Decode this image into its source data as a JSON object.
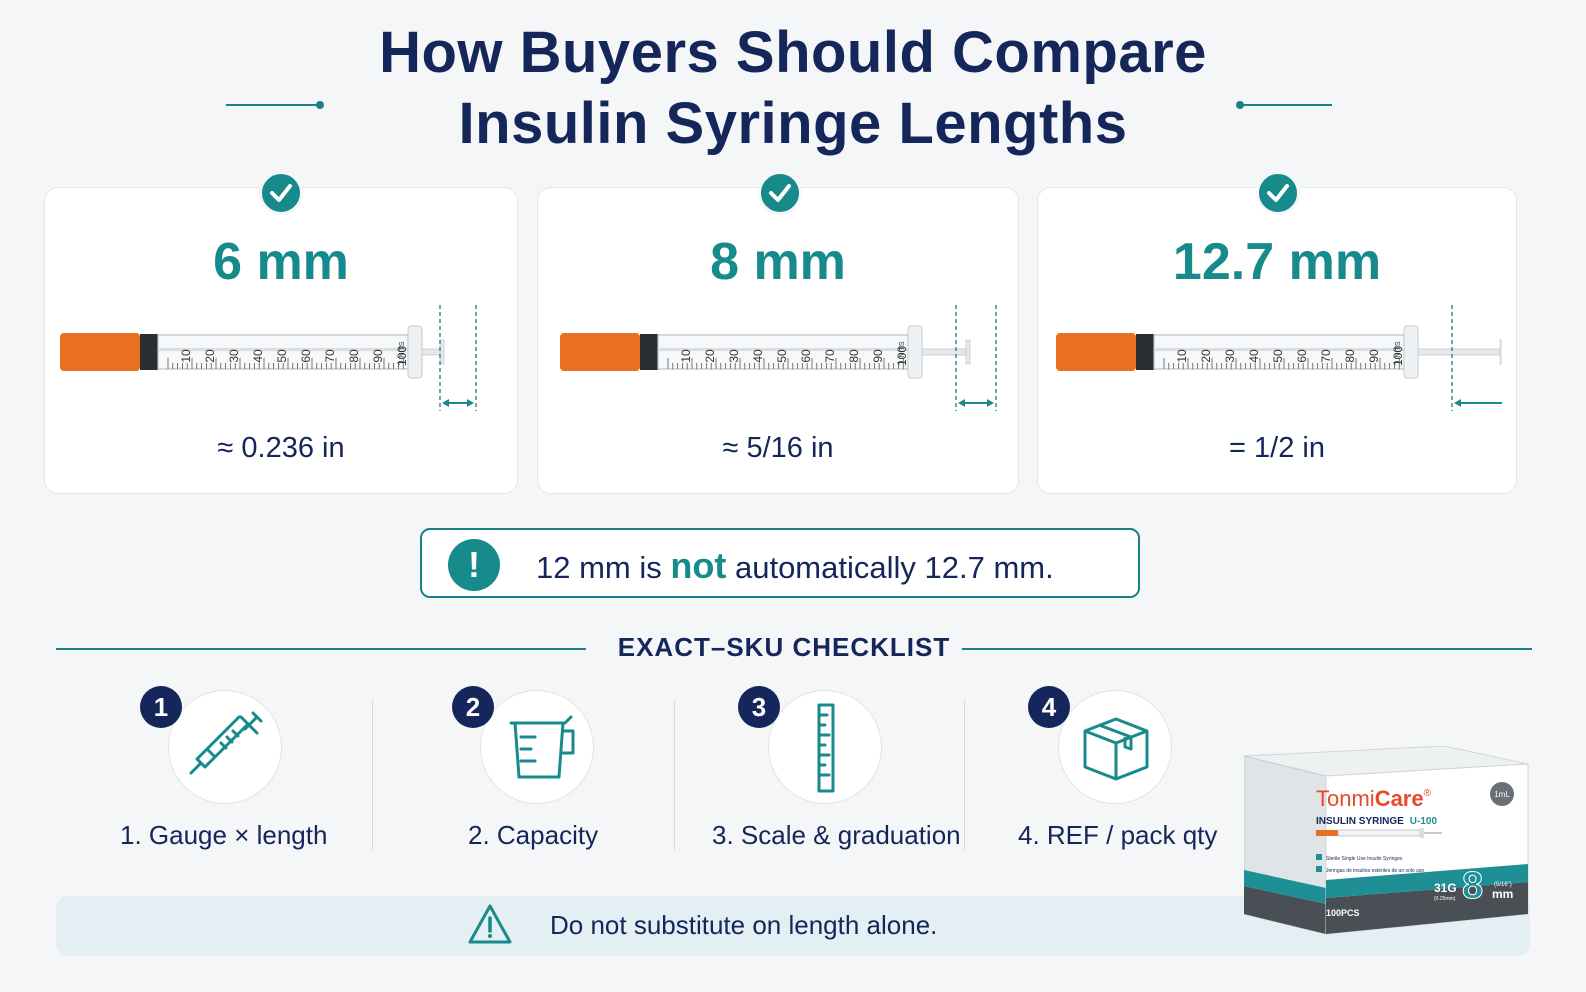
{
  "title": {
    "line1": "How Buyers Should Compare",
    "line2": "Insulin Syringe Lengths"
  },
  "cards": [
    {
      "length": "6 mm",
      "equivalent": "≈  0.236 in",
      "badge_icon": "check-icon"
    },
    {
      "length": "8 mm",
      "equivalent": "≈ 5/16 in",
      "badge_icon": "check-icon"
    },
    {
      "length": "12.7 mm",
      "equivalent": "= 1/2 in",
      "badge_icon": "check-icon"
    }
  ],
  "syringe_scale": {
    "ticks": [
      "10",
      "20",
      "30",
      "40",
      "50",
      "60",
      "70",
      "80",
      "90",
      "100"
    ],
    "unit": "UNITS"
  },
  "callout": {
    "icon": "exclamation-icon",
    "prefix": "12 mm is",
    "emphasis": "not",
    "suffix": "automatically 12.7 mm."
  },
  "checklist": {
    "title": "EXACT–SKU CHECKLIST",
    "steps": [
      {
        "number": "1",
        "icon": "syringe-icon",
        "label": "1. Gauge  ×  length"
      },
      {
        "number": "2",
        "icon": "measuring-cup-icon",
        "label": "2. Capacity"
      },
      {
        "number": "3",
        "icon": "ruler-icon",
        "label": "3. Scale & graduation"
      },
      {
        "number": "4",
        "icon": "box-icon",
        "label": "4. REF / pack qty"
      }
    ]
  },
  "banner": {
    "icon": "warning-triangle-icon",
    "text": "Do not substitute on length alone."
  },
  "product": {
    "brand_part1": "Tonmi",
    "brand_part2": "Care",
    "brand_mark": "®",
    "product_line": "INSULIN SYRINGE",
    "concentration": "U-100",
    "volume": "1mL",
    "gauge": "31G",
    "gauge_sub": "(0.25mm)",
    "needle_length": "8",
    "needle_unit": "mm",
    "needle_length_inch": "(5/16\")",
    "line_en": "Sterile Single Use Insulin Syringes",
    "line_es": "Jeringas de insulina estériles de un solo uso",
    "quantity": "100PCS"
  },
  "colors": {
    "navy": "#14265a",
    "teal": "#178a8b",
    "orange": "#e8701e",
    "background": "#f5f6f8"
  }
}
